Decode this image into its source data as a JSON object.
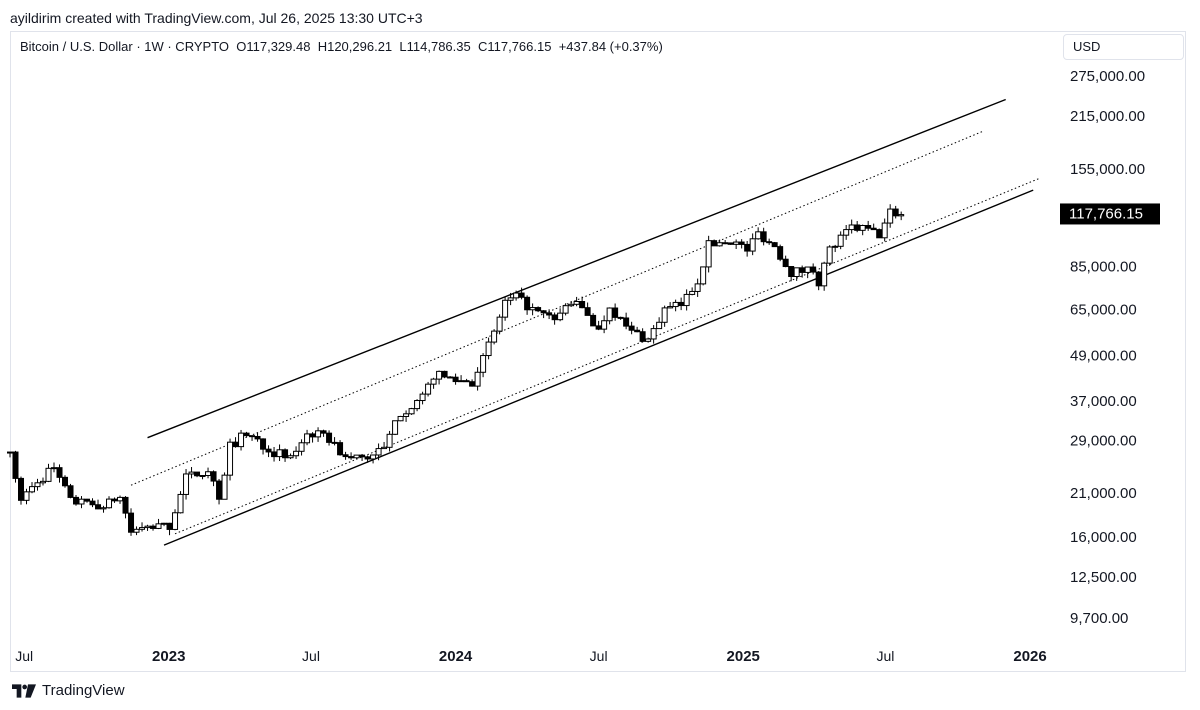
{
  "header": {
    "credit": "ayildirim created with TradingView.com, Jul 26, 2025 13:30 UTC+3"
  },
  "legend": {
    "symbol": "Bitcoin / U.S. Dollar · 1W · CRYPTO",
    "open": "O117,329.48",
    "high": "H120,296.21",
    "low": "L114,786.35",
    "close": "C117,766.15",
    "change": "+437.84 (+0.37%)"
  },
  "currency_button": "USD",
  "brand": "TradingView",
  "colors": {
    "candle": "#000000",
    "background": "#ffffff",
    "border": "#e0e3eb",
    "text": "#131722"
  },
  "chart_data": {
    "type": "candlestick",
    "scale": "log",
    "ylim": [
      9000,
      300000
    ],
    "current_price": 117766.15,
    "current_price_label": "117,766.15",
    "y_ticks": [
      {
        "value": 275000,
        "label": "275,000.00"
      },
      {
        "value": 215000,
        "label": "215,000.00"
      },
      {
        "value": 155000,
        "label": "155,000.00"
      },
      {
        "value": 85000,
        "label": "85,000.00"
      },
      {
        "value": 65000,
        "label": "65,000.00"
      },
      {
        "value": 49000,
        "label": "49,000.00"
      },
      {
        "value": 37000,
        "label": "37,000.00"
      },
      {
        "value": 29000,
        "label": "29,000.00"
      },
      {
        "value": 21000,
        "label": "21,000.00"
      },
      {
        "value": 16000,
        "label": "16,000.00"
      },
      {
        "value": 12500,
        "label": "12,500.00"
      },
      {
        "value": 9700,
        "label": "9,700.00"
      }
    ],
    "x_ticks": [
      {
        "date": "2022-07-01",
        "label": "Jul",
        "bold": false
      },
      {
        "date": "2023-01-01",
        "label": "2023",
        "bold": true
      },
      {
        "date": "2023-07-01",
        "label": "Jul",
        "bold": false
      },
      {
        "date": "2024-01-01",
        "label": "2024",
        "bold": true
      },
      {
        "date": "2024-07-01",
        "label": "Jul",
        "bold": false
      },
      {
        "date": "2025-01-01",
        "label": "2025",
        "bold": true
      },
      {
        "date": "2025-07-01",
        "label": "Jul",
        "bold": false
      },
      {
        "date": "2026-01-01",
        "label": "2026",
        "bold": true
      }
    ],
    "xlim": [
      "2022-06-13",
      "2026-01-20"
    ],
    "price_path": [
      [
        "2022-06-13",
        27000
      ],
      [
        "2022-06-27",
        20000
      ],
      [
        "2022-07-18",
        22500
      ],
      [
        "2022-08-08",
        24500
      ],
      [
        "2022-08-29",
        20000
      ],
      [
        "2022-09-19",
        19500
      ],
      [
        "2022-10-10",
        19300
      ],
      [
        "2022-10-31",
        20500
      ],
      [
        "2022-11-14",
        16500
      ],
      [
        "2022-12-12",
        17000
      ],
      [
        "2023-01-02",
        17100
      ],
      [
        "2023-01-23",
        23000
      ],
      [
        "2023-02-20",
        24300
      ],
      [
        "2023-03-06",
        20500
      ],
      [
        "2023-03-20",
        28000
      ],
      [
        "2023-04-10",
        30300
      ],
      [
        "2023-05-15",
        27000
      ],
      [
        "2023-06-05",
        25800
      ],
      [
        "2023-06-26",
        30500
      ],
      [
        "2023-07-24",
        29300
      ],
      [
        "2023-08-14",
        26000
      ],
      [
        "2023-09-11",
        26200
      ],
      [
        "2023-10-02",
        27500
      ],
      [
        "2023-10-23",
        34500
      ],
      [
        "2023-11-20",
        37500
      ],
      [
        "2023-12-04",
        43500
      ],
      [
        "2024-01-08",
        42000
      ],
      [
        "2024-01-22",
        41800
      ],
      [
        "2024-02-12",
        51800
      ],
      [
        "2024-03-04",
        68000
      ],
      [
        "2024-03-18",
        70000
      ],
      [
        "2024-04-15",
        63500
      ],
      [
        "2024-05-06",
        61000
      ],
      [
        "2024-05-27",
        68500
      ],
      [
        "2024-06-17",
        63500
      ],
      [
        "2024-07-01",
        57000
      ],
      [
        "2024-07-15",
        67000
      ],
      [
        "2024-08-05",
        58000
      ],
      [
        "2024-09-02",
        54000
      ],
      [
        "2024-09-23",
        65000
      ],
      [
        "2024-10-14",
        67000
      ],
      [
        "2024-11-04",
        78000
      ],
      [
        "2024-11-18",
        97000
      ],
      [
        "2024-12-16",
        100000
      ],
      [
        "2025-01-06",
        94000
      ],
      [
        "2025-01-20",
        104500
      ],
      [
        "2025-02-10",
        96000
      ],
      [
        "2025-03-03",
        82000
      ],
      [
        "2025-03-31",
        83500
      ],
      [
        "2025-04-07",
        77500
      ],
      [
        "2025-04-21",
        94000
      ],
      [
        "2025-05-19",
        108000
      ],
      [
        "2025-06-09",
        106500
      ],
      [
        "2025-06-23",
        103000
      ],
      [
        "2025-07-07",
        118500
      ],
      [
        "2025-07-21",
        117766
      ]
    ],
    "trendlines": [
      {
        "style": "solid",
        "from": [
          "2022-12-05",
          29500
        ],
        "to": [
          "2025-12-01",
          238000
        ]
      },
      {
        "style": "dotted",
        "from": [
          "2022-11-14",
          22000
        ],
        "to": [
          "2025-11-03",
          196000
        ]
      },
      {
        "style": "dotted",
        "from": [
          "2023-01-09",
          16300
        ],
        "to": [
          "2026-01-12",
          146000
        ]
      },
      {
        "style": "solid",
        "from": [
          "2022-12-26",
          15200
        ],
        "to": [
          "2026-01-05",
          136000
        ]
      }
    ]
  }
}
